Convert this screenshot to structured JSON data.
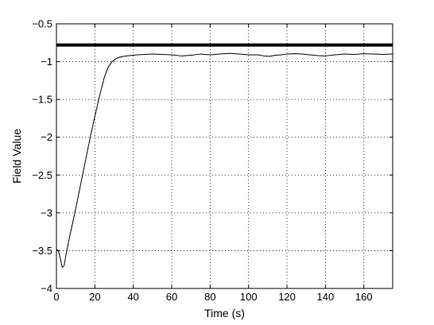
{
  "chart_data": {
    "type": "line",
    "title": "",
    "xlabel": "Time (s)",
    "ylabel": "Field Value",
    "xlim": [
      0,
      175
    ],
    "ylim": [
      -4,
      -0.5
    ],
    "xticks": [
      0,
      20,
      40,
      60,
      80,
      100,
      120,
      140,
      160
    ],
    "xtick_labels": [
      "0",
      "20",
      "40",
      "60",
      "80",
      "100",
      "120",
      "140",
      "160"
    ],
    "yticks": [
      -4,
      -3.5,
      -3,
      -2.5,
      -2,
      -1.5,
      -1,
      -0.5
    ],
    "ytick_labels": [
      "−4",
      "−3.5",
      "−3",
      "−2.5",
      "−2",
      "−1.5",
      "−1",
      "−0.5"
    ],
    "grid": true,
    "series": [
      {
        "style": "thick",
        "color": "#000000",
        "x": [
          0,
          175
        ],
        "y": [
          -0.78,
          -0.78
        ]
      },
      {
        "style": "thin",
        "color": "#000000",
        "x": [
          0,
          1,
          2,
          3,
          4,
          5,
          7,
          10,
          14,
          18,
          22,
          25,
          27,
          29,
          31,
          33,
          35,
          38,
          42,
          46,
          50,
          55,
          60,
          65,
          70,
          75,
          80,
          85,
          90,
          95,
          100,
          105,
          108,
          111,
          114,
          117,
          120,
          124,
          128,
          132,
          136,
          140,
          145,
          150,
          155,
          160,
          165,
          170,
          175
        ],
        "y": [
          -3.48,
          -3.5,
          -3.6,
          -3.72,
          -3.7,
          -3.55,
          -3.3,
          -2.95,
          -2.45,
          -1.95,
          -1.5,
          -1.2,
          -1.07,
          -1.0,
          -0.96,
          -0.94,
          -0.93,
          -0.92,
          -0.91,
          -0.905,
          -0.9,
          -0.905,
          -0.91,
          -0.925,
          -0.915,
          -0.9,
          -0.91,
          -0.9,
          -0.89,
          -0.9,
          -0.91,
          -0.91,
          -0.925,
          -0.93,
          -0.915,
          -0.91,
          -0.9,
          -0.895,
          -0.9,
          -0.91,
          -0.92,
          -0.925,
          -0.91,
          -0.9,
          -0.905,
          -0.895,
          -0.9,
          -0.905,
          -0.9
        ]
      }
    ]
  }
}
